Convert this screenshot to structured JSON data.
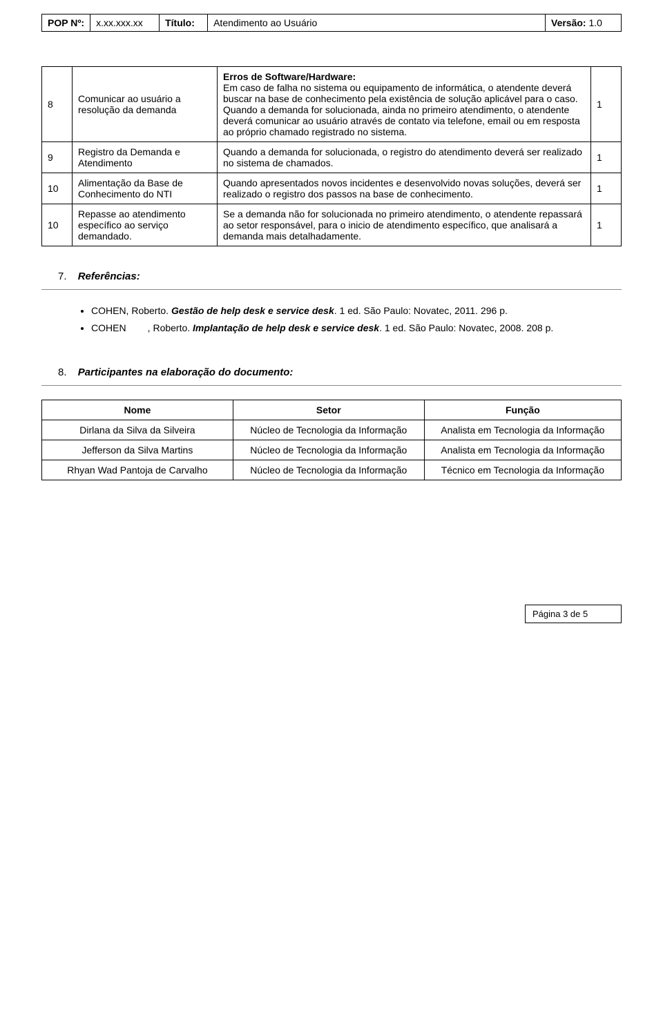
{
  "header": {
    "pop_label": "POP Nº:",
    "pop_value": "x.xx.xxx.xx",
    "titulo_label": "Título:",
    "titulo_value": "Atendimento ao Usuário",
    "versao_label": "Versão:",
    "versao_value": "1.0"
  },
  "main_rows": [
    {
      "num": "8",
      "act": "Comunicar ao usuário a resolução da demanda",
      "desc_title": "Erros de Software/Hardware:",
      "desc_body": "Em caso de falha no sistema ou equipamento de informática, o atendente deverá buscar na base de conhecimento pela existência de solução aplicável para o caso.\nQuando a demanda for solucionada, ainda no primeiro atendimento, o atendente deverá comunicar ao usuário através de contato via telefone, email ou em resposta ao próprio chamado registrado no sistema.",
      "last": "1"
    },
    {
      "num": "9",
      "act": "Registro da Demanda e Atendimento",
      "desc_body": "Quando a demanda for solucionada, o registro do atendimento deverá ser realizado no sistema de chamados.",
      "last": "1"
    },
    {
      "num": "10",
      "act": "Alimentação da Base de Conhecimento do NTI",
      "desc_body": "Quando apresentados novos incidentes e desenvolvido novas soluções, deverá ser realizado o registro dos passos na base de conhecimento.",
      "last": "1"
    },
    {
      "num": "10",
      "act": "Repasse ao atendimento específico ao serviço demandado.",
      "desc_body": "Se a demanda não for solucionada no primeiro atendimento, o atendente repassará ao setor responsável, para o inicio de atendimento específico, que analisará a demanda mais detalhadamente.",
      "last": "1"
    }
  ],
  "section7": {
    "num": "7.",
    "title": "Referências:"
  },
  "refs": {
    "r1_pre": "COHEN, Roberto. ",
    "r1_ital": "Gestão de help desk e service desk",
    "r1_post": ". 1 ed. São Paulo: Novatec, 2011. 296 p.",
    "r2_pre": "COHEN        , Roberto. ",
    "r2_ital": "Implantação de help desk e service desk",
    "r2_post": ". 1 ed. São Paulo: Novatec, 2008. 208 p."
  },
  "section8": {
    "num": "8.",
    "title": "Participantes na elaboração do documento:"
  },
  "part_headers": {
    "c1": "Nome",
    "c2": "Setor",
    "c3": "Função"
  },
  "participants": [
    {
      "nome": "Dirlana da Silva da Silveira",
      "setor": "Núcleo de Tecnologia da Informação",
      "funcao": "Analista em Tecnologia da Informação"
    },
    {
      "nome": "Jefferson da Silva Martins",
      "setor": "Núcleo de Tecnologia da Informação",
      "funcao": "Analista em Tecnologia da Informação"
    },
    {
      "nome": "Rhyan Wad Pantoja de Carvalho",
      "setor": "Núcleo de Tecnologia da Informação",
      "funcao": "Técnico em Tecnologia da Informação"
    }
  ],
  "footer": "Página 3 de 5"
}
